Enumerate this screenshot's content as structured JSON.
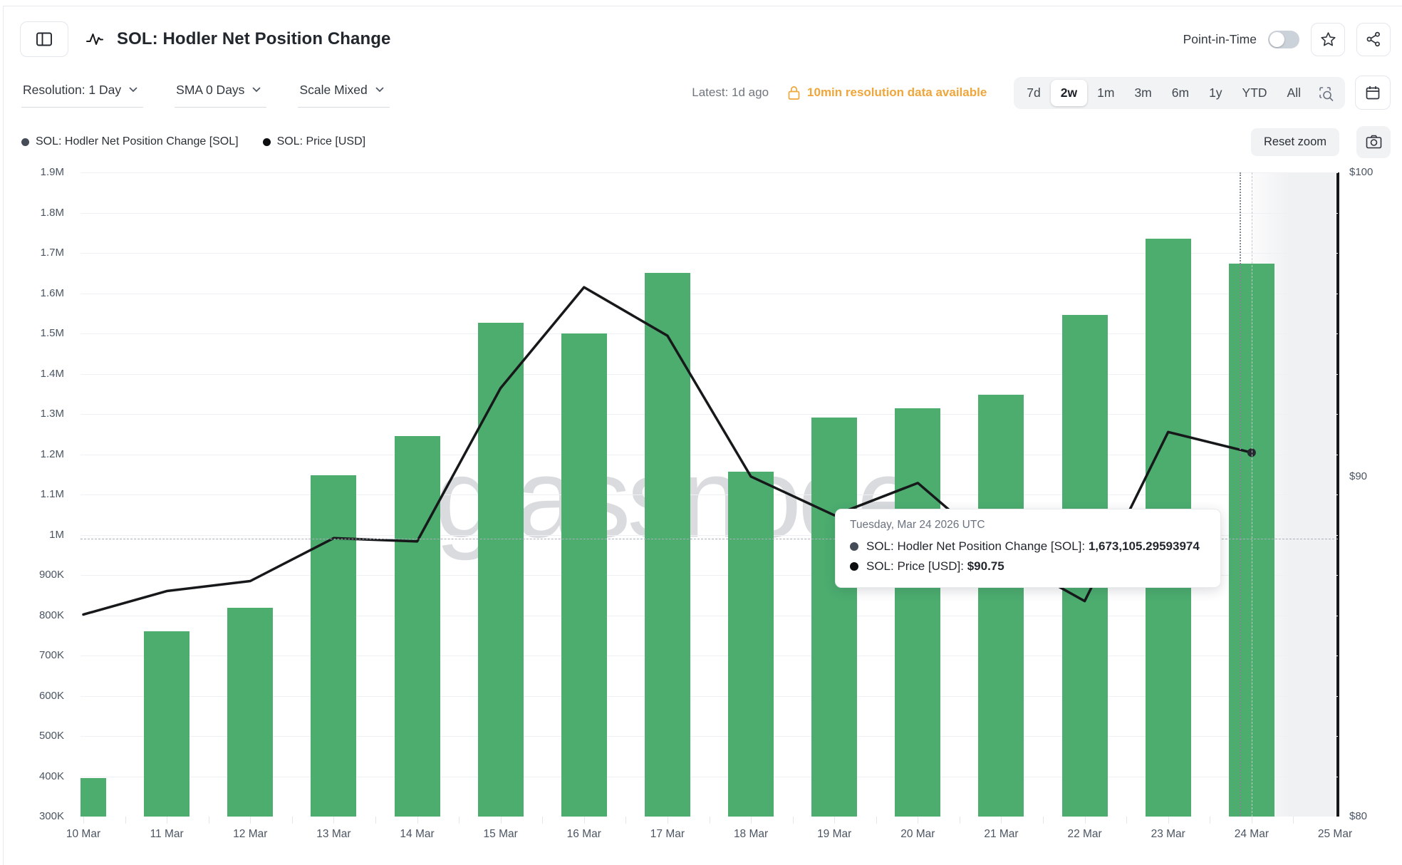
{
  "header": {
    "title": "SOL: Hodler Net Position Change",
    "point_in_time_label": "Point-in-Time",
    "point_in_time_state": "off"
  },
  "controls": {
    "resolution_label": "Resolution: 1 Day",
    "sma_label": "SMA 0 Days",
    "scale_label": "Scale Mixed",
    "latest_label": "Latest: 1d ago",
    "locked_notice": "10min resolution data available",
    "ranges": [
      "7d",
      "2w",
      "1m",
      "3m",
      "6m",
      "1y",
      "YTD",
      "All"
    ],
    "active_range": "2w"
  },
  "legend": [
    {
      "label": "SOL: Hodler Net Position Change [SOL]",
      "color": "#454c58"
    },
    {
      "label": "SOL: Price [USD]",
      "color": "#0c0e10"
    }
  ],
  "toolbar": {
    "reset_zoom_label": "Reset zoom"
  },
  "watermark": "glassnode",
  "tooltip": {
    "date": "Tuesday, Mar 24 2026 UTC",
    "rows": [
      {
        "label": "SOL: Hodler Net Position Change [SOL]",
        "value": "1,673,105.29593974",
        "color": "#454c58"
      },
      {
        "label": "SOL: Price [USD]",
        "value": "$90.75",
        "color": "#0c0e10"
      }
    ]
  },
  "chart_data": {
    "type": "mixed",
    "categories": [
      "10 Mar",
      "11 Mar",
      "12 Mar",
      "13 Mar",
      "14 Mar",
      "15 Mar",
      "16 Mar",
      "17 Mar",
      "18 Mar",
      "19 Mar",
      "20 Mar",
      "21 Mar",
      "22 Mar",
      "23 Mar",
      "24 Mar",
      "25 Mar"
    ],
    "series": [
      {
        "name": "SOL: Hodler Net Position Change [SOL]",
        "type": "bar",
        "color": "#4cad6f",
        "values": [
          396000,
          760000,
          819000,
          1148000,
          1245000,
          1527000,
          1500000,
          1650000,
          1157000,
          1291000,
          1315000,
          1347000,
          1546000,
          1736000,
          1673105.29593974
        ]
      },
      {
        "name": "SOL: Price [USD]",
        "type": "line",
        "color": "#17181a",
        "values": [
          85.8,
          86.5,
          86.8,
          88.1,
          88.0,
          92.8,
          96.1,
          94.5,
          90.0,
          88.8,
          89.8,
          87.6,
          86.2,
          91.4,
          90.75
        ]
      }
    ],
    "left_axis": {
      "min": 300000,
      "max": 1900000,
      "tick_labels": [
        "300K",
        "400K",
        "500K",
        "600K",
        "700K",
        "800K",
        "900K",
        "1M",
        "1.1M",
        "1.2M",
        "1.3M",
        "1.4M",
        "1.5M",
        "1.6M",
        "1.7M",
        "1.8M",
        "1.9M"
      ]
    },
    "right_axis": {
      "scale": "log",
      "min": 80,
      "max": 100,
      "ticks": [
        {
          "label": "$100",
          "value": 100
        },
        {
          "label": "$90",
          "value": 90
        },
        {
          "label": "$80",
          "value": 80
        }
      ]
    },
    "hover": {
      "category": "24 Mar",
      "crosshair_y_value": 990000
    },
    "grid": true,
    "legend_position": "top-left"
  }
}
